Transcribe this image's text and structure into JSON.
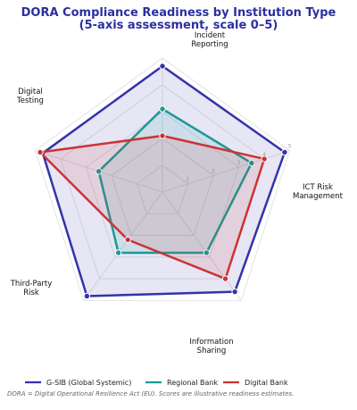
{
  "chart_data": {
    "type": "radar",
    "title_lines": [
      "DORA Compliance Readiness by Institution Type",
      "(5-axis assessment, scale 0–5)"
    ],
    "axes": [
      [
        "ICT Risk",
        "Management"
      ],
      [
        "Incident",
        "Reporting"
      ],
      [
        "Digital",
        "Testing"
      ],
      [
        "Third-Party",
        "Risk"
      ],
      [
        "Information",
        "Sharing"
      ]
    ],
    "axis_angles_deg": [
      -18,
      -90,
      -162,
      126,
      54
    ],
    "rlim": [
      0,
      5
    ],
    "ticks": [
      "1",
      "2",
      "3",
      "4",
      "5"
    ],
    "tick_values": [
      1,
      2,
      3,
      4,
      5
    ],
    "grid": true,
    "legend_position": "bottom",
    "series": [
      {
        "name": "G-SIB (Global Systemic)",
        "color": "#3333aa",
        "values": [
          4.8,
          4.7,
          4.7,
          4.8,
          4.6
        ]
      },
      {
        "name": "Regional Bank",
        "color": "#1b9a96",
        "values": [
          3.5,
          3.1,
          2.5,
          2.8,
          2.8
        ]
      },
      {
        "name": "Digital Bank",
        "color": "#cc3333",
        "values": [
          4.0,
          2.1,
          4.8,
          2.2,
          4.0
        ]
      }
    ],
    "footnote": "DORA = Digital Operational Resilience Act (EU). Scores are illustrative readiness estimates."
  }
}
